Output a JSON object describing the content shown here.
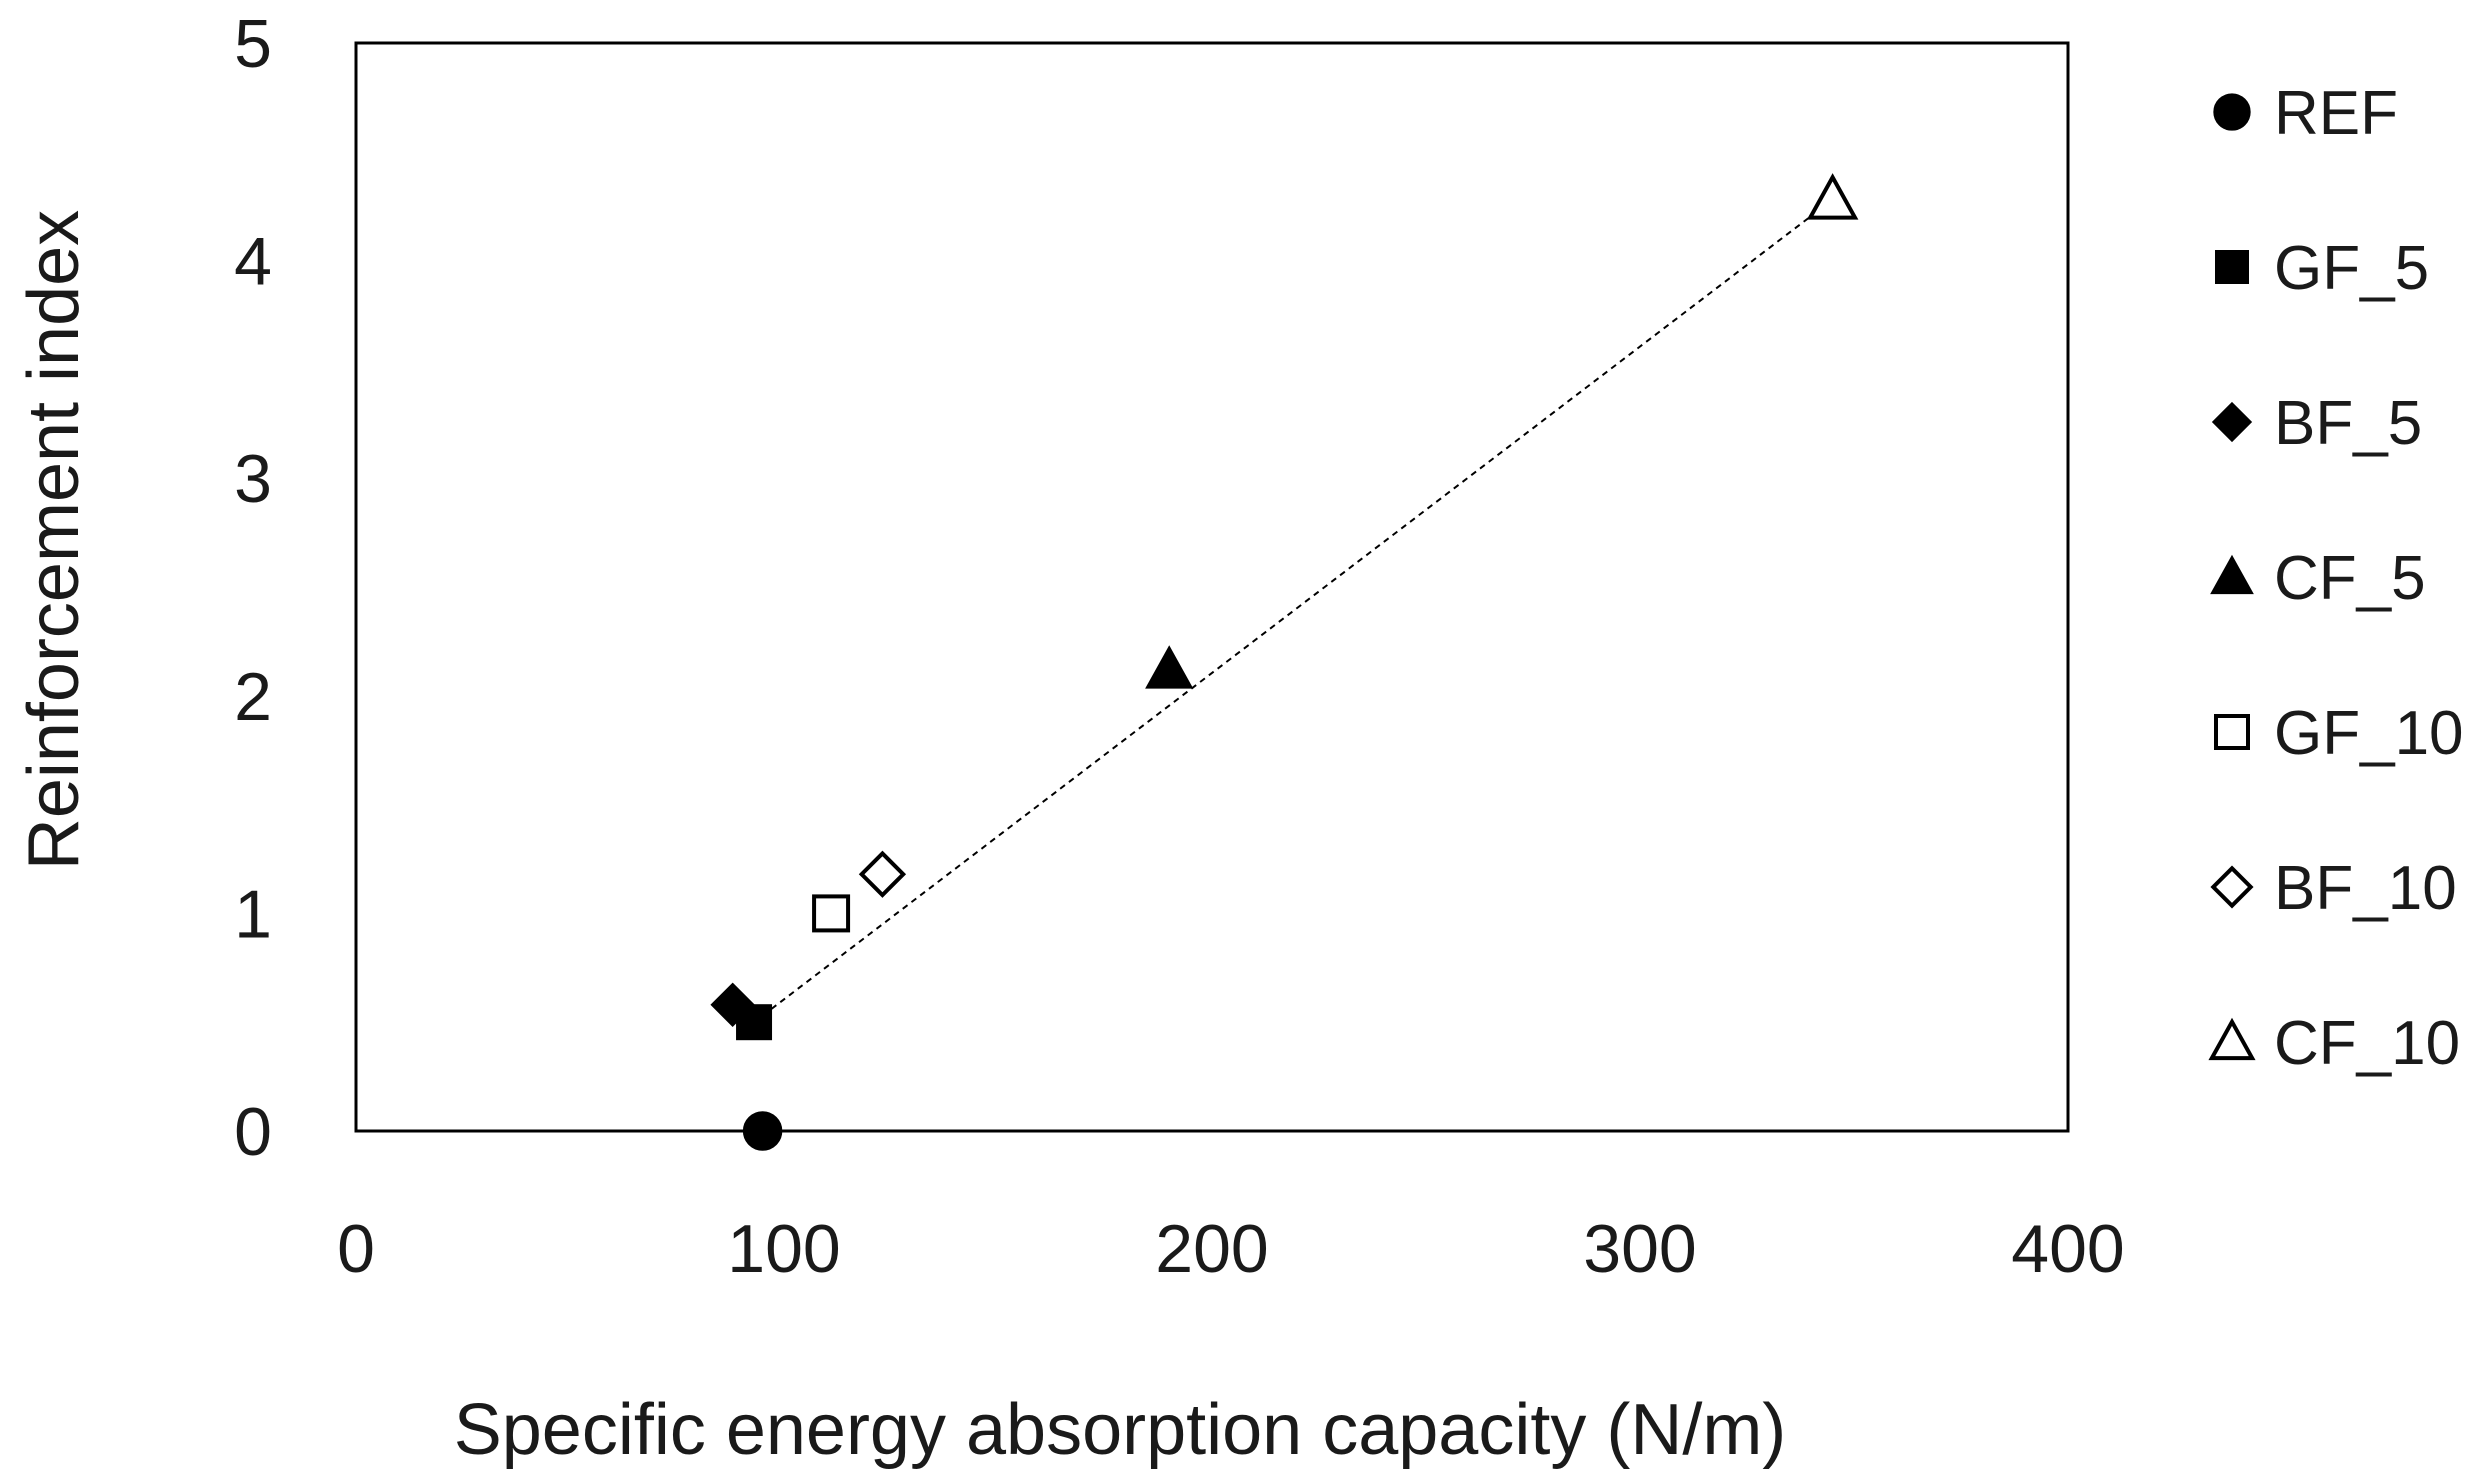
{
  "chart_data": {
    "type": "scatter",
    "title": "",
    "xlabel": "Specific energy absorption capacity (N/m)",
    "ylabel": "Reinforcement index",
    "xlim": [
      0,
      400
    ],
    "ylim": [
      0,
      5
    ],
    "xticks": [
      0,
      100,
      200,
      300,
      400
    ],
    "yticks": [
      0,
      1,
      2,
      3,
      4,
      5
    ],
    "grid": false,
    "legend_position": "right",
    "series": [
      {
        "name": "REF",
        "marker": "circle",
        "filled": true,
        "x": 95,
        "y": 0.0
      },
      {
        "name": "GF_5",
        "marker": "square",
        "filled": true,
        "x": 93,
        "y": 0.5
      },
      {
        "name": "BF_5",
        "marker": "diamond",
        "filled": true,
        "x": 88,
        "y": 0.58
      },
      {
        "name": "CF_5",
        "marker": "triangle",
        "filled": true,
        "x": 190,
        "y": 2.12
      },
      {
        "name": "GF_10",
        "marker": "square",
        "filled": false,
        "x": 111,
        "y": 1.0
      },
      {
        "name": "BF_10",
        "marker": "diamond",
        "filled": false,
        "x": 123,
        "y": 1.18
      },
      {
        "name": "CF_10",
        "marker": "triangle",
        "filled": false,
        "x": 345,
        "y": 4.28
      }
    ],
    "trendline": {
      "style": "dotted",
      "x": [
        93,
        345
      ],
      "y": [
        0.5,
        4.28
      ]
    }
  },
  "colors": {
    "marker": "#000000",
    "axis": "#000000",
    "text": "#1a1a1a"
  }
}
